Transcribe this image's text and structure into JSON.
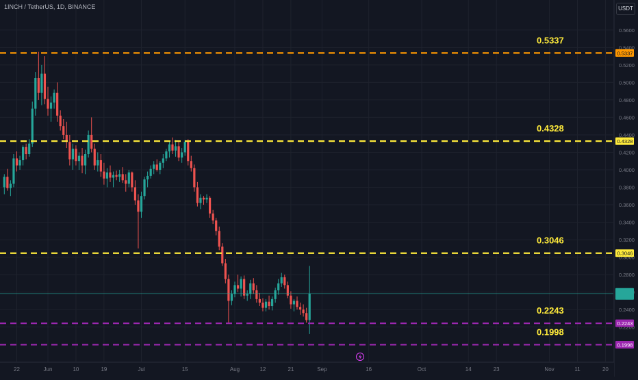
{
  "header": {
    "symbol_title": "1INCH / TetherUS, 1D, BINANCE",
    "currency": "USDT"
  },
  "colors": {
    "background": "#131722",
    "up": "#26a69a",
    "down": "#ef5350",
    "orange_level": "#ff9800",
    "yellow_level": "#ffeb3b",
    "purple_level": "#9c27b0",
    "axis_text": "#787b86"
  },
  "chart_data": {
    "type": "candlestick",
    "title": "1INCH / TetherUS, 1D, BINANCE",
    "y_axis": {
      "ticks": [
        "0.5600",
        "0.5400",
        "0.5200",
        "0.5000",
        "0.4800",
        "0.4600",
        "0.4400",
        "0.4200",
        "0.4000",
        "0.3800",
        "0.3600",
        "0.3400",
        "0.3200",
        "0.3000",
        "0.2800",
        "0.2600",
        "0.2400",
        "0.2200"
      ],
      "range": [
        0.188,
        0.572
      ]
    },
    "x_axis": {
      "tick_labels": [
        "22",
        "Jun",
        "10",
        "19",
        "Jul",
        "15",
        "Aug",
        "12",
        "21",
        "Sep",
        "16",
        "Oct",
        "14",
        "23",
        "Nov",
        "11",
        "20"
      ],
      "tick_days": [
        0,
        10,
        19,
        28,
        40,
        54,
        70,
        79,
        88,
        98,
        113,
        130,
        145,
        154,
        171,
        180,
        189
      ]
    },
    "horizontal_levels": [
      {
        "value": 0.5337,
        "label": "0.5337",
        "axis_label": "0.5337",
        "color": "orange_level"
      },
      {
        "value": 0.4328,
        "label": "0.4328",
        "axis_label": "0.4328",
        "color": "yellow_level"
      },
      {
        "value": 0.3046,
        "label": "0.3046",
        "axis_label": "0.3046",
        "color": "yellow_level"
      },
      {
        "value": 0.2243,
        "label": "0.2243",
        "axis_label": "0.2243",
        "color": "purple_level"
      },
      {
        "value": 0.1998,
        "label": "0.1998",
        "axis_label": "0.1998",
        "color": "purple_level"
      }
    ],
    "last_price": {
      "value": 0.2583
    },
    "candles": [
      [
        0.38,
        0.395,
        0.372,
        0.392
      ],
      [
        0.392,
        0.401,
        0.376,
        0.379
      ],
      [
        0.379,
        0.388,
        0.37,
        0.384
      ],
      [
        0.384,
        0.418,
        0.38,
        0.413
      ],
      [
        0.413,
        0.421,
        0.398,
        0.405
      ],
      [
        0.405,
        0.416,
        0.4,
        0.411
      ],
      [
        0.411,
        0.428,
        0.405,
        0.426
      ],
      [
        0.426,
        0.43,
        0.412,
        0.418
      ],
      [
        0.418,
        0.435,
        0.415,
        0.43
      ],
      [
        0.43,
        0.478,
        0.426,
        0.47
      ],
      [
        0.47,
        0.512,
        0.462,
        0.505
      ],
      [
        0.505,
        0.535,
        0.48,
        0.488
      ],
      [
        0.488,
        0.52,
        0.474,
        0.51
      ],
      [
        0.51,
        0.53,
        0.475,
        0.481
      ],
      [
        0.481,
        0.495,
        0.462,
        0.47
      ],
      [
        0.47,
        0.484,
        0.455,
        0.477
      ],
      [
        0.477,
        0.492,
        0.47,
        0.488
      ],
      [
        0.488,
        0.5,
        0.455,
        0.462
      ],
      [
        0.462,
        0.468,
        0.445,
        0.45
      ],
      [
        0.45,
        0.458,
        0.435,
        0.44
      ],
      [
        0.44,
        0.455,
        0.425,
        0.432
      ],
      [
        0.432,
        0.44,
        0.405,
        0.412
      ],
      [
        0.412,
        0.43,
        0.4,
        0.424
      ],
      [
        0.424,
        0.428,
        0.405,
        0.41
      ],
      [
        0.41,
        0.42,
        0.4,
        0.416
      ],
      [
        0.416,
        0.425,
        0.396,
        0.405
      ],
      [
        0.405,
        0.423,
        0.395,
        0.418
      ],
      [
        0.418,
        0.445,
        0.414,
        0.44
      ],
      [
        0.44,
        0.46,
        0.42,
        0.424
      ],
      [
        0.424,
        0.43,
        0.4,
        0.405
      ],
      [
        0.405,
        0.42,
        0.398,
        0.411
      ],
      [
        0.411,
        0.418,
        0.392,
        0.398
      ],
      [
        0.398,
        0.408,
        0.383,
        0.39
      ],
      [
        0.39,
        0.402,
        0.38,
        0.397
      ],
      [
        0.397,
        0.405,
        0.386,
        0.391
      ],
      [
        0.391,
        0.398,
        0.38,
        0.394
      ],
      [
        0.394,
        0.399,
        0.388,
        0.392
      ],
      [
        0.392,
        0.4,
        0.386,
        0.395
      ],
      [
        0.395,
        0.403,
        0.385,
        0.388
      ],
      [
        0.388,
        0.395,
        0.375,
        0.384
      ],
      [
        0.384,
        0.4,
        0.38,
        0.397
      ],
      [
        0.397,
        0.398,
        0.375,
        0.38
      ],
      [
        0.38,
        0.388,
        0.36,
        0.365
      ],
      [
        0.365,
        0.372,
        0.31,
        0.352
      ],
      [
        0.352,
        0.375,
        0.345,
        0.37
      ],
      [
        0.37,
        0.392,
        0.366,
        0.389
      ],
      [
        0.389,
        0.398,
        0.38,
        0.393
      ],
      [
        0.393,
        0.405,
        0.39,
        0.401
      ],
      [
        0.401,
        0.41,
        0.395,
        0.406
      ],
      [
        0.406,
        0.412,
        0.398,
        0.4
      ],
      [
        0.4,
        0.41,
        0.395,
        0.408
      ],
      [
        0.408,
        0.418,
        0.402,
        0.413
      ],
      [
        0.413,
        0.424,
        0.41,
        0.421
      ],
      [
        0.421,
        0.432,
        0.414,
        0.429
      ],
      [
        0.429,
        0.437,
        0.418,
        0.422
      ],
      [
        0.422,
        0.434,
        0.415,
        0.427
      ],
      [
        0.427,
        0.432,
        0.41,
        0.414
      ],
      [
        0.414,
        0.425,
        0.408,
        0.42
      ],
      [
        0.42,
        0.434,
        0.416,
        0.432
      ],
      [
        0.432,
        0.435,
        0.405,
        0.41
      ],
      [
        0.41,
        0.416,
        0.398,
        0.402
      ],
      [
        0.402,
        0.406,
        0.375,
        0.38
      ],
      [
        0.38,
        0.386,
        0.358,
        0.362
      ],
      [
        0.362,
        0.372,
        0.355,
        0.368
      ],
      [
        0.368,
        0.37,
        0.36,
        0.366
      ],
      [
        0.366,
        0.372,
        0.362,
        0.368
      ],
      [
        0.368,
        0.37,
        0.345,
        0.35
      ],
      [
        0.35,
        0.354,
        0.338,
        0.342
      ],
      [
        0.342,
        0.345,
        0.325,
        0.33
      ],
      [
        0.33,
        0.335,
        0.308,
        0.312
      ],
      [
        0.312,
        0.316,
        0.29,
        0.293
      ],
      [
        0.293,
        0.298,
        0.27,
        0.275
      ],
      [
        0.275,
        0.28,
        0.225,
        0.25
      ],
      [
        0.25,
        0.262,
        0.245,
        0.258
      ],
      [
        0.258,
        0.272,
        0.254,
        0.268
      ],
      [
        0.268,
        0.28,
        0.26,
        0.264
      ],
      [
        0.264,
        0.278,
        0.255,
        0.275
      ],
      [
        0.275,
        0.279,
        0.252,
        0.256
      ],
      [
        0.256,
        0.262,
        0.25,
        0.258
      ],
      [
        0.258,
        0.274,
        0.252,
        0.27
      ],
      [
        0.27,
        0.276,
        0.258,
        0.262
      ],
      [
        0.262,
        0.268,
        0.248,
        0.252
      ],
      [
        0.252,
        0.259,
        0.244,
        0.248
      ],
      [
        0.248,
        0.253,
        0.238,
        0.242
      ],
      [
        0.242,
        0.252,
        0.238,
        0.249
      ],
      [
        0.249,
        0.256,
        0.24,
        0.244
      ],
      [
        0.244,
        0.255,
        0.239,
        0.252
      ],
      [
        0.252,
        0.265,
        0.248,
        0.262
      ],
      [
        0.262,
        0.275,
        0.257,
        0.27
      ],
      [
        0.27,
        0.282,
        0.266,
        0.277
      ],
      [
        0.277,
        0.28,
        0.264,
        0.268
      ],
      [
        0.268,
        0.272,
        0.253,
        0.256
      ],
      [
        0.256,
        0.261,
        0.241,
        0.246
      ],
      [
        0.246,
        0.252,
        0.238,
        0.25
      ],
      [
        0.25,
        0.255,
        0.24,
        0.243
      ],
      [
        0.243,
        0.248,
        0.234,
        0.24
      ],
      [
        0.24,
        0.246,
        0.232,
        0.236
      ],
      [
        0.236,
        0.242,
        0.225,
        0.228
      ],
      [
        0.228,
        0.29,
        0.212,
        0.2583
      ]
    ]
  }
}
